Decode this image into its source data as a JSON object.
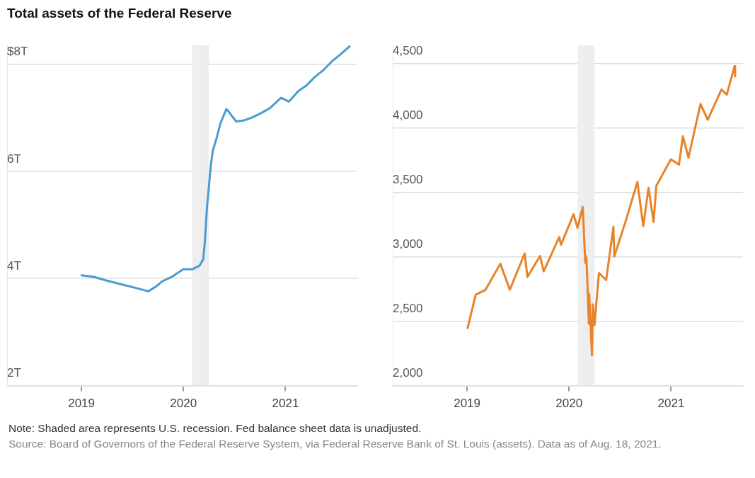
{
  "chart_data": [
    {
      "type": "line",
      "title": "Total assets of the Federal Reserve",
      "x": [
        "2019-01-02",
        "2019-02-15",
        "2019-04-01",
        "2019-06-01",
        "2019-08-01",
        "2019-08-28",
        "2019-09-25",
        "2019-10-15",
        "2019-11-20",
        "2019-12-31",
        "2020-02-01",
        "2020-02-28",
        "2020-03-12",
        "2020-03-18",
        "2020-03-25",
        "2020-04-08",
        "2020-04-15",
        "2020-04-29",
        "2020-05-13",
        "2020-06-03",
        "2020-06-10",
        "2020-07-08",
        "2020-08-05",
        "2020-09-02",
        "2020-10-07",
        "2020-11-04",
        "2020-12-16",
        "2021-01-13",
        "2021-02-17",
        "2021-03-17",
        "2021-04-14",
        "2021-05-19",
        "2021-06-16",
        "2021-07-14",
        "2021-08-18"
      ],
      "series": [
        {
          "color": "#4a9bd1",
          "values": [
            4.06,
            4.03,
            3.96,
            3.88,
            3.8,
            3.76,
            3.85,
            3.94,
            4.03,
            4.17,
            4.17,
            4.24,
            4.36,
            4.7,
            5.3,
            6.1,
            6.38,
            6.62,
            6.9,
            7.16,
            7.12,
            6.93,
            6.95,
            7.0,
            7.09,
            7.17,
            7.37,
            7.3,
            7.5,
            7.6,
            7.75,
            7.9,
            8.05,
            8.17,
            8.33
          ]
        }
      ],
      "xlim": [
        "2018-04-10",
        "2021-09-15"
      ],
      "xticks": [
        {
          "value": "2019",
          "label": "2019"
        },
        {
          "value": "2020",
          "label": "2020"
        },
        {
          "value": "2021",
          "label": "2021"
        }
      ],
      "ylim": [
        2,
        8.35
      ],
      "yticks": [
        {
          "value": 2,
          "label": "2T"
        },
        {
          "value": 4,
          "label": "4T"
        },
        {
          "value": 6,
          "label": "6T"
        },
        {
          "value": 8,
          "label": "$8T"
        }
      ],
      "bands": [
        {
          "axis": "x",
          "from": "2020-02",
          "to": "2020-04",
          "color": "#eeeeee"
        }
      ],
      "grid": "y",
      "legend": false,
      "marker": "none",
      "line_style": "solid",
      "annotations": [
        "Note: Shaded area represents U.S. recession. Fed balance sheet data is unadjusted.",
        "Source: Board of Governors of the Federal Reserve System, via Federal Reserve Bank of St. Louis (assets). Data as of Aug. 18, 2021."
      ]
    },
    {
      "type": "line",
      "x": [
        "2019-01-03",
        "2019-02-01",
        "2019-03-08",
        "2019-04-30",
        "2019-06-03",
        "2019-07-26",
        "2019-08-05",
        "2019-09-19",
        "2019-10-02",
        "2019-11-27",
        "2019-12-03",
        "2020-01-17",
        "2020-01-31",
        "2020-02-19",
        "2020-02-28",
        "2020-03-03",
        "2020-03-12",
        "2020-03-13",
        "2020-03-23",
        "2020-03-26",
        "2020-04-01",
        "2020-04-17",
        "2020-05-13",
        "2020-06-08",
        "2020-06-11",
        "2020-07-22",
        "2020-09-02",
        "2020-09-23",
        "2020-10-12",
        "2020-10-30",
        "2020-11-09",
        "2020-12-31",
        "2021-01-29",
        "2021-02-12",
        "2021-03-04",
        "2021-04-16",
        "2021-05-12",
        "2021-06-30",
        "2021-07-19",
        "2021-08-16",
        "2021-08-18"
      ],
      "series": [
        {
          "color": "#e8832a",
          "values": [
            2447,
            2706,
            2743,
            2946,
            2744,
            3025,
            2844,
            3006,
            2887,
            3153,
            3093,
            3329,
            3225,
            3386,
            2954,
            3003,
            2480,
            2711,
            2237,
            2630,
            2470,
            2874,
            2820,
            3232,
            3002,
            3276,
            3580,
            3237,
            3534,
            3270,
            3550,
            3756,
            3714,
            3934,
            3768,
            4185,
            4063,
            4297,
            4258,
            4479,
            4400
          ]
        }
      ],
      "xlim": [
        "2018-04-10",
        "2021-09-15"
      ],
      "xticks": [
        {
          "value": "2019",
          "label": "2019"
        },
        {
          "value": "2020",
          "label": "2020"
        },
        {
          "value": "2021",
          "label": "2021"
        }
      ],
      "ylim": [
        2000,
        4640
      ],
      "yticks": [
        {
          "value": 2000,
          "label": "2,000"
        },
        {
          "value": 2500,
          "label": "2,500"
        },
        {
          "value": 3000,
          "label": "3,000"
        },
        {
          "value": 3500,
          "label": "3,500"
        },
        {
          "value": 4000,
          "label": "4,000"
        },
        {
          "value": 4500,
          "label": "4,500"
        }
      ],
      "bands": [
        {
          "axis": "x",
          "from": "2020-02",
          "to": "2020-04",
          "color": "#eeeeee"
        }
      ],
      "grid": "y",
      "legend": false,
      "marker": "none",
      "line_style": "solid"
    }
  ]
}
